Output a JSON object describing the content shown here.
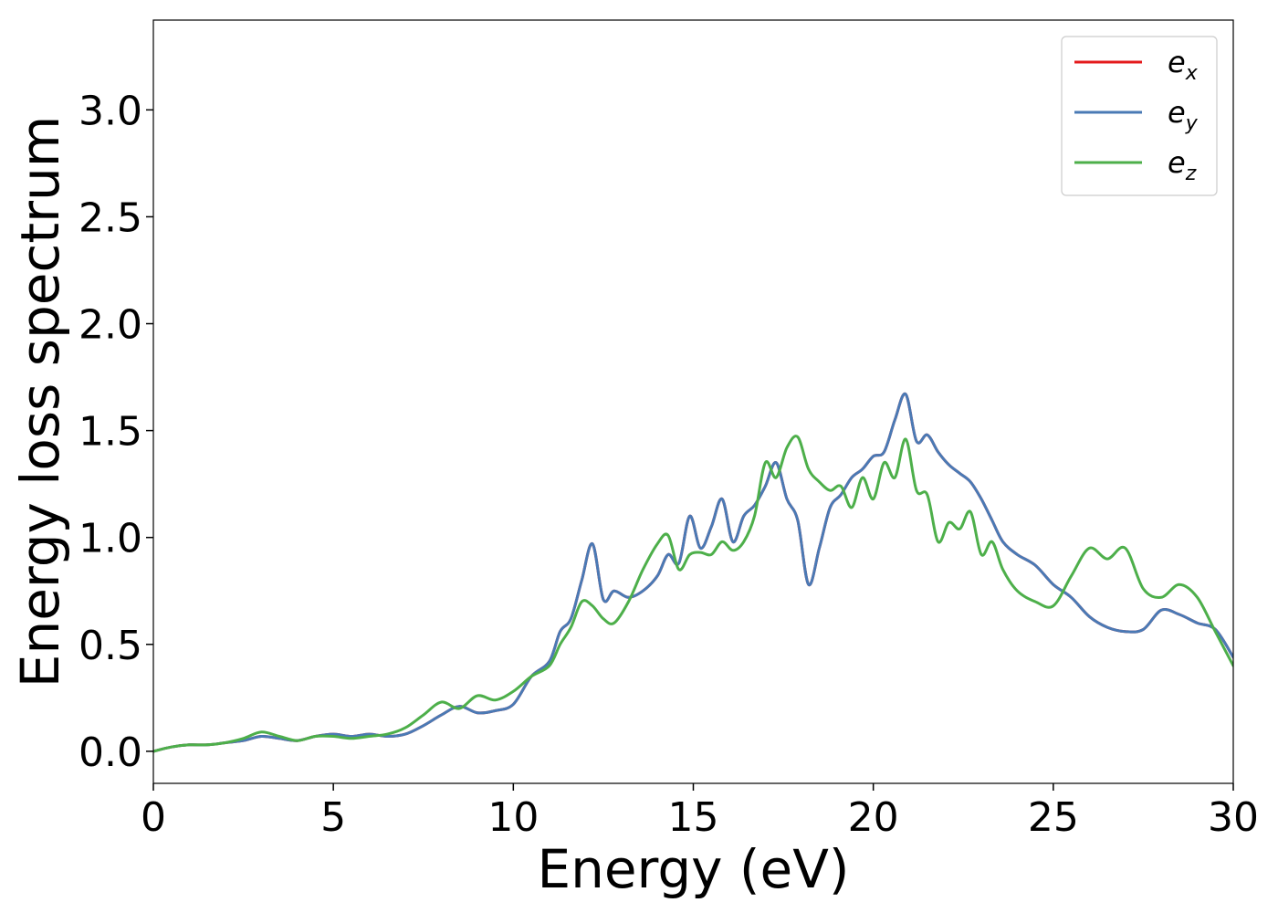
{
  "chart_data": {
    "type": "line",
    "title": "",
    "xlabel": "Energy (eV)",
    "ylabel": "Energy loss spectrum",
    "xlim": [
      0,
      30
    ],
    "ylim": [
      -0.15,
      3.42
    ],
    "xticks": [
      0,
      5,
      10,
      15,
      20,
      25,
      30
    ],
    "xtick_labels": [
      "0",
      "5",
      "10",
      "15",
      "20",
      "25",
      "30"
    ],
    "yticks": [
      0.0,
      0.5,
      1.0,
      1.5,
      2.0,
      2.5,
      3.0
    ],
    "ytick_labels": [
      "0.0",
      "0.5",
      "1.0",
      "1.5",
      "2.0",
      "2.5",
      "3.0"
    ],
    "grid": false,
    "legend_position": "top-right",
    "series": [
      {
        "name": "e_x",
        "legend_base": "e",
        "legend_sub": "x",
        "color": "#e41a1c",
        "x": [
          0,
          0.5,
          1,
          1.5,
          2,
          2.5,
          3,
          3.5,
          4,
          4.5,
          5,
          5.5,
          6,
          6.5,
          7,
          7.5,
          8,
          8.5,
          9,
          9.5,
          10,
          10.5,
          11,
          11.3,
          11.6,
          11.9,
          12.2,
          12.5,
          12.8,
          13.2,
          13.6,
          14,
          14.3,
          14.6,
          14.9,
          15.2,
          15.5,
          15.8,
          16.1,
          16.4,
          16.7,
          17,
          17.3,
          17.6,
          17.9,
          18.2,
          18.5,
          18.8,
          19.1,
          19.4,
          19.7,
          20,
          20.3,
          20.6,
          20.9,
          21.2,
          21.5,
          21.8,
          22.1,
          22.4,
          22.7,
          23,
          23.3,
          23.6,
          24,
          24.5,
          25,
          25.5,
          26,
          26.5,
          27,
          27.5,
          28,
          28.5,
          29,
          29.5,
          30
        ],
        "y": [
          0.0,
          0.02,
          0.03,
          0.03,
          0.04,
          0.05,
          0.07,
          0.06,
          0.05,
          0.07,
          0.08,
          0.07,
          0.08,
          0.07,
          0.08,
          0.12,
          0.17,
          0.21,
          0.18,
          0.19,
          0.22,
          0.35,
          0.42,
          0.56,
          0.62,
          0.8,
          0.97,
          0.71,
          0.75,
          0.72,
          0.75,
          0.82,
          0.92,
          0.88,
          1.1,
          0.95,
          1.05,
          1.18,
          0.98,
          1.1,
          1.15,
          1.24,
          1.35,
          1.18,
          1.08,
          0.78,
          0.95,
          1.14,
          1.2,
          1.28,
          1.32,
          1.38,
          1.4,
          1.55,
          1.67,
          1.45,
          1.48,
          1.4,
          1.34,
          1.3,
          1.26,
          1.18,
          1.08,
          0.98,
          0.92,
          0.87,
          0.78,
          0.72,
          0.63,
          0.58,
          0.56,
          0.57,
          0.66,
          0.64,
          0.6,
          0.57,
          0.44
        ]
      },
      {
        "name": "e_y",
        "legend_base": "e",
        "legend_sub": "y",
        "color": "#4a7ab5",
        "x": [
          0,
          0.5,
          1,
          1.5,
          2,
          2.5,
          3,
          3.5,
          4,
          4.5,
          5,
          5.5,
          6,
          6.5,
          7,
          7.5,
          8,
          8.5,
          9,
          9.5,
          10,
          10.5,
          11,
          11.3,
          11.6,
          11.9,
          12.2,
          12.5,
          12.8,
          13.2,
          13.6,
          14,
          14.3,
          14.6,
          14.9,
          15.2,
          15.5,
          15.8,
          16.1,
          16.4,
          16.7,
          17,
          17.3,
          17.6,
          17.9,
          18.2,
          18.5,
          18.8,
          19.1,
          19.4,
          19.7,
          20,
          20.3,
          20.6,
          20.9,
          21.2,
          21.5,
          21.8,
          22.1,
          22.4,
          22.7,
          23,
          23.3,
          23.6,
          24,
          24.5,
          25,
          25.5,
          26,
          26.5,
          27,
          27.5,
          28,
          28.5,
          29,
          29.5,
          30
        ],
        "y": [
          0.0,
          0.02,
          0.03,
          0.03,
          0.04,
          0.05,
          0.07,
          0.06,
          0.05,
          0.07,
          0.08,
          0.07,
          0.08,
          0.07,
          0.08,
          0.12,
          0.17,
          0.21,
          0.18,
          0.19,
          0.22,
          0.35,
          0.42,
          0.56,
          0.62,
          0.8,
          0.97,
          0.71,
          0.75,
          0.72,
          0.75,
          0.82,
          0.92,
          0.88,
          1.1,
          0.95,
          1.05,
          1.18,
          0.98,
          1.1,
          1.15,
          1.24,
          1.35,
          1.18,
          1.08,
          0.78,
          0.95,
          1.14,
          1.2,
          1.28,
          1.32,
          1.38,
          1.4,
          1.55,
          1.67,
          1.45,
          1.48,
          1.4,
          1.34,
          1.3,
          1.26,
          1.18,
          1.08,
          0.98,
          0.92,
          0.87,
          0.78,
          0.72,
          0.63,
          0.58,
          0.56,
          0.57,
          0.66,
          0.64,
          0.6,
          0.57,
          0.44
        ]
      },
      {
        "name": "e_z",
        "legend_base": "e",
        "legend_sub": "z",
        "color": "#4daf4a",
        "x": [
          0,
          0.5,
          1,
          1.5,
          2,
          2.5,
          3,
          3.5,
          4,
          4.5,
          5,
          5.5,
          6,
          6.5,
          7,
          7.5,
          8,
          8.5,
          9,
          9.5,
          10,
          10.5,
          11,
          11.3,
          11.6,
          11.9,
          12.2,
          12.5,
          12.8,
          13.2,
          13.6,
          14,
          14.3,
          14.6,
          14.9,
          15.2,
          15.5,
          15.8,
          16.1,
          16.4,
          16.7,
          17,
          17.3,
          17.6,
          17.9,
          18.2,
          18.5,
          18.8,
          19.1,
          19.4,
          19.7,
          20,
          20.3,
          20.6,
          20.9,
          21.2,
          21.5,
          21.8,
          22.1,
          22.4,
          22.7,
          23,
          23.3,
          23.6,
          24,
          24.5,
          25,
          25.5,
          26,
          26.5,
          27,
          27.5,
          28,
          28.5,
          29,
          29.5,
          30
        ],
        "y": [
          0.0,
          0.02,
          0.03,
          0.03,
          0.04,
          0.06,
          0.09,
          0.07,
          0.05,
          0.07,
          0.07,
          0.06,
          0.07,
          0.08,
          0.11,
          0.17,
          0.23,
          0.2,
          0.26,
          0.24,
          0.28,
          0.35,
          0.4,
          0.5,
          0.58,
          0.7,
          0.68,
          0.62,
          0.6,
          0.7,
          0.85,
          0.97,
          1.01,
          0.85,
          0.92,
          0.93,
          0.92,
          0.98,
          0.94,
          0.98,
          1.1,
          1.35,
          1.28,
          1.42,
          1.47,
          1.32,
          1.26,
          1.22,
          1.24,
          1.14,
          1.28,
          1.18,
          1.35,
          1.28,
          1.46,
          1.22,
          1.2,
          0.98,
          1.07,
          1.04,
          1.12,
          0.92,
          0.98,
          0.85,
          0.75,
          0.7,
          0.68,
          0.82,
          0.95,
          0.9,
          0.95,
          0.76,
          0.72,
          0.78,
          0.72,
          0.56,
          0.4
        ]
      }
    ]
  }
}
